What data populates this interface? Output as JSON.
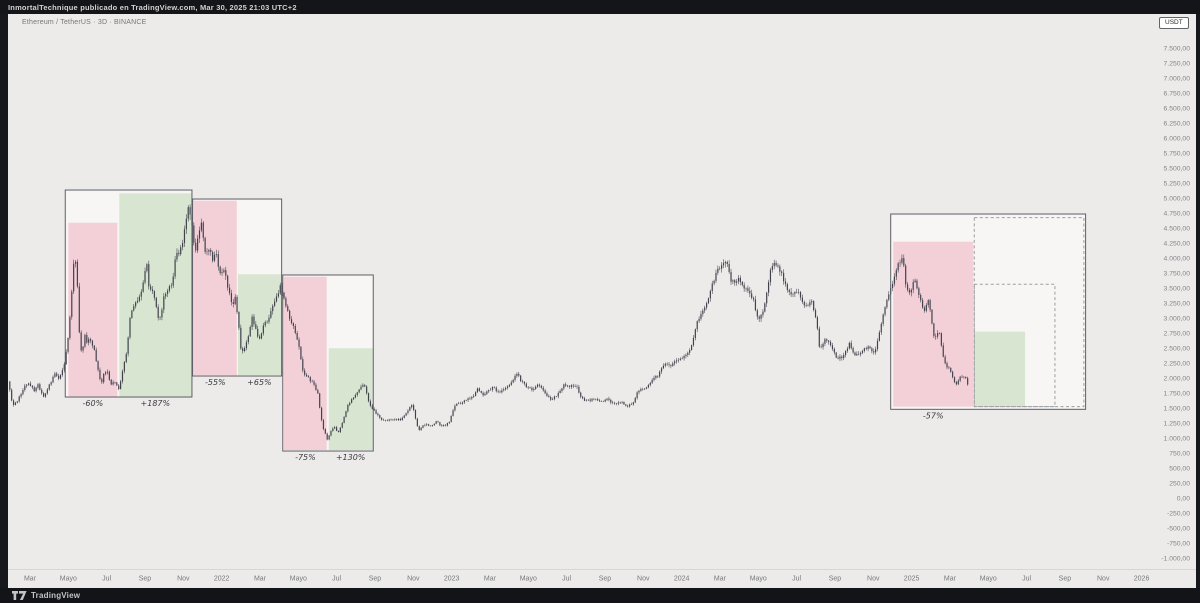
{
  "header": {
    "attribution": "InmortalTechnique publicado en TradingView.com, Mar 30, 2025 21:03 UTC+2"
  },
  "legend": {
    "symbol": "Ethereum / TetherUS",
    "interval": "3D",
    "exchange": "BINANCE",
    "display": "Ethereum / TetherUS · 3D · BINANCE"
  },
  "price_axis": {
    "currency_badge": "USDT",
    "max": 7500,
    "min": -1000,
    "step": 250,
    "labels": [
      "7.500,00",
      "7.250,00",
      "7.000,00",
      "6.750,00",
      "6.500,00",
      "6.250,00",
      "6.000,00",
      "5.750,00",
      "5.500,00",
      "5.250,00",
      "5.000,00",
      "4.750,00",
      "4.500,00",
      "4.250,00",
      "4.000,00",
      "3.750,00",
      "3.500,00",
      "3.250,00",
      "3.000,00",
      "2.750,00",
      "2.500,00",
      "2.250,00",
      "2.000,00",
      "1.750,00",
      "1.500,00",
      "1.250,00",
      "1.000,00",
      "750,00",
      "500,00",
      "250,00",
      "0,00",
      "-250,00",
      "-500,00",
      "-750,00",
      "-1.000,00"
    ]
  },
  "time_axis": {
    "labels": [
      "Mar",
      "Mayo",
      "Jul",
      "Sep",
      "Nov",
      "2022",
      "Mar",
      "Mayo",
      "Jul",
      "Sep",
      "Nov",
      "2023",
      "Mar",
      "Mayo",
      "Jul",
      "Sep",
      "Nov",
      "2024",
      "Mar",
      "Mayo",
      "Jul",
      "Sep",
      "Nov",
      "2025",
      "Mar",
      "Mayo",
      "Jul",
      "Sep",
      "Nov",
      "2026"
    ]
  },
  "footer": {
    "brand": "TradingView"
  },
  "colors": {
    "background": "#edebe9",
    "frame": "#17181b",
    "candle": "#41424c",
    "drawdown_fill": "#f3d0d8",
    "recovery_fill": "#d7e5d1",
    "outer_fill": "rgba(255,255,255,0.55)",
    "box_stroke": "#5d5e66",
    "dashed_stroke": "#9c9da1",
    "axis_line": "#d8d6d3"
  },
  "chart_data": {
    "type": "candlestick",
    "pair": "Ethereum / TetherUS",
    "interval": "3D",
    "exchange": "BINANCE",
    "x_unit": "months_since_2021-03-01",
    "ylim": [
      -1000,
      7500
    ],
    "grid": false,
    "close_path": [
      [
        -1.15,
        1950
      ],
      [
        -0.9,
        1520
      ],
      [
        -0.6,
        1650
      ],
      [
        -0.3,
        1850
      ],
      [
        0,
        1900
      ],
      [
        0.2,
        1790
      ],
      [
        0.4,
        1890
      ],
      [
        0.7,
        1680
      ],
      [
        1.0,
        1870
      ],
      [
        1.3,
        2080
      ],
      [
        1.5,
        1990
      ],
      [
        1.8,
        2250
      ],
      [
        2.0,
        2680
      ],
      [
        2.15,
        3300
      ],
      [
        2.33,
        4150
      ],
      [
        2.45,
        3700
      ],
      [
        2.6,
        2550
      ],
      [
        2.72,
        2420
      ],
      [
        2.85,
        2750
      ],
      [
        3.0,
        2550
      ],
      [
        3.1,
        2700
      ],
      [
        3.35,
        2450
      ],
      [
        3.6,
        2080
      ],
      [
        3.7,
        1900
      ],
      [
        3.85,
        2050
      ],
      [
        4.0,
        2150
      ],
      [
        4.2,
        1880
      ],
      [
        4.45,
        1950
      ],
      [
        4.65,
        1800
      ],
      [
        4.85,
        2150
      ],
      [
        5.05,
        2450
      ],
      [
        5.25,
        3120
      ],
      [
        5.5,
        3230
      ],
      [
        5.75,
        3380
      ],
      [
        6.0,
        3780
      ],
      [
        6.1,
        3920
      ],
      [
        6.2,
        3480
      ],
      [
        6.45,
        3440
      ],
      [
        6.65,
        3050
      ],
      [
        6.8,
        2990
      ],
      [
        7.0,
        3390
      ],
      [
        7.25,
        3500
      ],
      [
        7.45,
        3620
      ],
      [
        7.6,
        4080
      ],
      [
        7.8,
        4050
      ],
      [
        8.0,
        4320
      ],
      [
        8.27,
        4840
      ],
      [
        8.45,
        4580
      ],
      [
        8.6,
        4090
      ],
      [
        8.8,
        4420
      ],
      [
        8.97,
        4590
      ],
      [
        9.15,
        4050
      ],
      [
        9.35,
        4150
      ],
      [
        9.55,
        3950
      ],
      [
        9.7,
        4070
      ],
      [
        9.9,
        3740
      ],
      [
        10.1,
        3830
      ],
      [
        10.35,
        3480
      ],
      [
        10.55,
        3170
      ],
      [
        10.7,
        3330
      ],
      [
        10.88,
        2950
      ],
      [
        10.97,
        2470
      ],
      [
        11.15,
        2450
      ],
      [
        11.4,
        2690
      ],
      [
        11.6,
        3050
      ],
      [
        11.75,
        2830
      ],
      [
        11.95,
        2620
      ],
      [
        12.2,
        2880
      ],
      [
        12.5,
        3020
      ],
      [
        12.8,
        3290
      ],
      [
        13.05,
        3520
      ],
      [
        13.3,
        3280
      ],
      [
        13.55,
        3010
      ],
      [
        13.8,
        2820
      ],
      [
        14.0,
        2580
      ],
      [
        14.25,
        2090
      ],
      [
        14.5,
        2020
      ],
      [
        14.75,
        1910
      ],
      [
        15.0,
        1770
      ],
      [
        15.25,
        1210
      ],
      [
        15.5,
        980
      ],
      [
        15.7,
        1110
      ],
      [
        15.9,
        1190
      ],
      [
        16.05,
        1070
      ],
      [
        16.3,
        1270
      ],
      [
        16.6,
        1560
      ],
      [
        16.9,
        1690
      ],
      [
        17.15,
        1790
      ],
      [
        17.45,
        1900
      ],
      [
        17.7,
        1560
      ],
      [
        18.0,
        1430
      ],
      [
        18.35,
        1310
      ],
      [
        18.7,
        1300
      ],
      [
        19.0,
        1320
      ],
      [
        19.35,
        1300
      ],
      [
        19.7,
        1450
      ],
      [
        19.95,
        1580
      ],
      [
        20.15,
        1260
      ],
      [
        20.3,
        1130
      ],
      [
        20.6,
        1230
      ],
      [
        20.9,
        1200
      ],
      [
        21.2,
        1280
      ],
      [
        21.5,
        1190
      ],
      [
        21.85,
        1250
      ],
      [
        22.2,
        1560
      ],
      [
        22.5,
        1590
      ],
      [
        22.8,
        1650
      ],
      [
        23.1,
        1680
      ],
      [
        23.35,
        1810
      ],
      [
        23.6,
        1720
      ],
      [
        23.9,
        1790
      ],
      [
        24.15,
        1850
      ],
      [
        24.45,
        1760
      ],
      [
        24.75,
        1830
      ],
      [
        25.05,
        1890
      ],
      [
        25.4,
        2090
      ],
      [
        25.65,
        1930
      ],
      [
        25.95,
        1840
      ],
      [
        26.25,
        1810
      ],
      [
        26.55,
        1890
      ],
      [
        26.85,
        1750
      ],
      [
        27.2,
        1630
      ],
      [
        27.5,
        1720
      ],
      [
        27.85,
        1880
      ],
      [
        28.15,
        1860
      ],
      [
        28.5,
        1870
      ],
      [
        28.8,
        1650
      ],
      [
        29.1,
        1620
      ],
      [
        29.45,
        1660
      ],
      [
        29.75,
        1590
      ],
      [
        30.1,
        1660
      ],
      [
        30.45,
        1560
      ],
      [
        30.8,
        1610
      ],
      [
        31.15,
        1530
      ],
      [
        31.45,
        1590
      ],
      [
        31.75,
        1790
      ],
      [
        32.1,
        1840
      ],
      [
        32.45,
        1950
      ],
      [
        32.8,
        2060
      ],
      [
        33.1,
        2250
      ],
      [
        33.4,
        2210
      ],
      [
        33.75,
        2290
      ],
      [
        34.1,
        2370
      ],
      [
        34.45,
        2480
      ],
      [
        34.8,
        2920
      ],
      [
        35.1,
        3100
      ],
      [
        35.45,
        3390
      ],
      [
        35.8,
        3770
      ],
      [
        36.1,
        3900
      ],
      [
        36.37,
        3960
      ],
      [
        36.6,
        3600
      ],
      [
        36.95,
        3650
      ],
      [
        37.3,
        3510
      ],
      [
        37.7,
        3340
      ],
      [
        38.0,
        2980
      ],
      [
        38.3,
        3150
      ],
      [
        38.6,
        3760
      ],
      [
        38.85,
        3890
      ],
      [
        39.15,
        3790
      ],
      [
        39.5,
        3470
      ],
      [
        39.8,
        3380
      ],
      [
        40.1,
        3440
      ],
      [
        40.45,
        3200
      ],
      [
        40.8,
        3270
      ],
      [
        41.05,
        2900
      ],
      [
        41.2,
        2460
      ],
      [
        41.5,
        2690
      ],
      [
        41.8,
        2510
      ],
      [
        42.15,
        2320
      ],
      [
        42.45,
        2360
      ],
      [
        42.75,
        2590
      ],
      [
        43.05,
        2370
      ],
      [
        43.4,
        2450
      ],
      [
        43.75,
        2520
      ],
      [
        44.1,
        2420
      ],
      [
        44.45,
        2980
      ],
      [
        44.75,
        3320
      ],
      [
        45.05,
        3620
      ],
      [
        45.35,
        3920
      ],
      [
        45.55,
        3970
      ],
      [
        45.7,
        3550
      ],
      [
        45.9,
        3380
      ],
      [
        46.15,
        3630
      ],
      [
        46.4,
        3340
      ],
      [
        46.65,
        3130
      ],
      [
        46.9,
        3290
      ],
      [
        47.15,
        2690
      ],
      [
        47.45,
        2740
      ],
      [
        47.7,
        2250
      ],
      [
        48.0,
        2130
      ],
      [
        48.3,
        1890
      ],
      [
        48.55,
        2020
      ],
      [
        48.8,
        2040
      ],
      [
        48.95,
        1880
      ]
    ],
    "annotations": [
      {
        "name": "cycle-2021",
        "outer": {
          "m": [
            1.84,
            8.45
          ],
          "p": [
            5133,
            1683
          ]
        },
        "drawdown": {
          "m": [
            2.0,
            4.56
          ],
          "p": [
            4588,
            1688
          ],
          "label": "-60%",
          "label_m": 3.28
        },
        "recovery": {
          "m": [
            4.66,
            8.42
          ],
          "p": [
            5078,
            1688
          ],
          "label": "+187%",
          "label_m": 6.54
        },
        "dashed": []
      },
      {
        "name": "cycle-2022a",
        "outer": {
          "m": [
            8.49,
            13.13
          ],
          "p": [
            4983,
            2033
          ]
        },
        "drawdown": {
          "m": [
            8.56,
            10.79
          ],
          "p": [
            4955,
            2045
          ],
          "label": "-55%",
          "label_m": 9.67
        },
        "recovery": {
          "m": [
            10.85,
            13.1
          ],
          "p": [
            3728,
            2045
          ],
          "label": "+65%",
          "label_m": 11.97
        },
        "dashed": []
      },
      {
        "name": "cycle-2022b",
        "outer": {
          "m": [
            13.19,
            17.91
          ],
          "p": [
            3717,
            783
          ]
        },
        "drawdown": {
          "m": [
            13.25,
            15.48
          ],
          "p": [
            3688,
            800
          ],
          "label": "-75%",
          "label_m": 14.37
        },
        "recovery": {
          "m": [
            15.59,
            17.88
          ],
          "p": [
            2495,
            800
          ],
          "label": "+130%",
          "label_m": 16.73
        },
        "dashed": []
      },
      {
        "name": "cycle-2025-projection",
        "outer": {
          "m": [
            44.91,
            55.08
          ],
          "p": [
            4733,
            1478
          ]
        },
        "drawdown": {
          "m": [
            45.04,
            49.22
          ],
          "p": [
            4272,
            1522
          ],
          "label": "-57%",
          "label_m": 47.13
        },
        "recovery": {
          "m": [
            49.27,
            51.92
          ],
          "p": [
            2772,
            1533
          ],
          "label": null,
          "label_m": null
        },
        "dashed": [
          {
            "m": [
              49.27,
              54.99
            ],
            "p": [
              4672,
              1522
            ]
          },
          {
            "m": [
              49.27,
              53.48
            ],
            "p": [
              3562,
              1522
            ]
          }
        ]
      }
    ]
  }
}
